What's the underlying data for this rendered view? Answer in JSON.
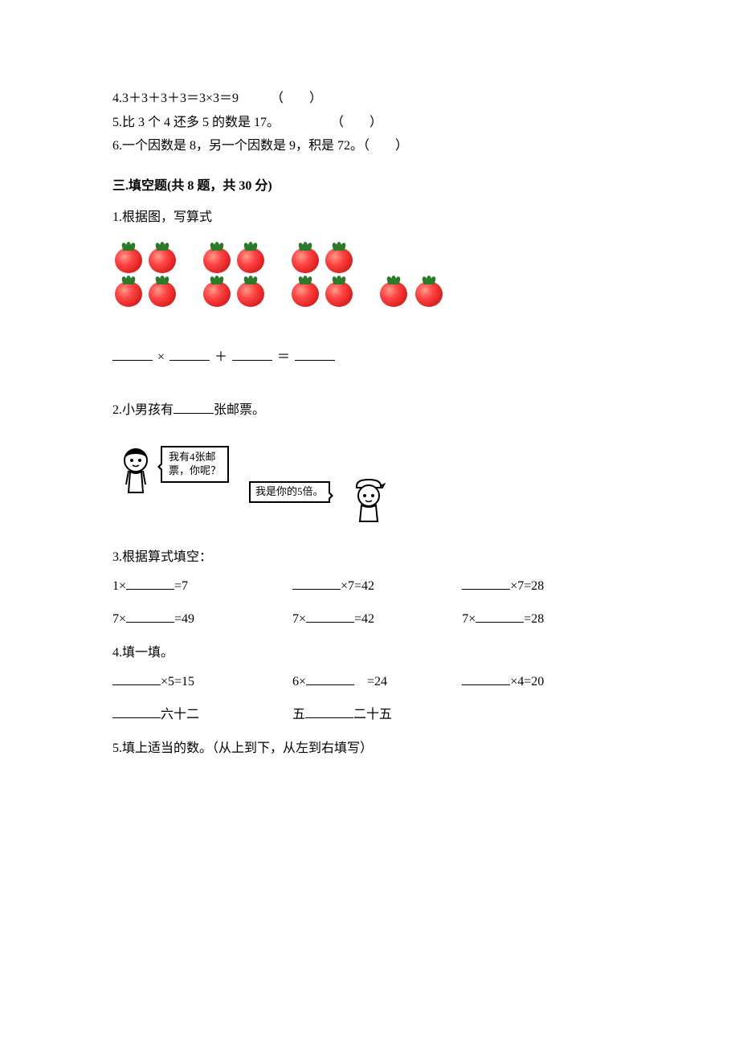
{
  "colors": {
    "text": "#000000",
    "background": "#ffffff",
    "tomato_body_light": "#ff9a8a",
    "tomato_body_mid": "#ff4444",
    "tomato_body_dark": "#aa1111",
    "tomato_leaf": "#2a7a2a"
  },
  "typography": {
    "font_family": "SimSun",
    "body_fontsize": 16,
    "line_height": 1.6
  },
  "top_items": [
    "4.3＋3＋3＋3＝3×3＝9　　　（　　）",
    "5.比 3 个 4 还多 5 的数是 17。　　　　　（　　）",
    "6.一个因数是 8，另一个因数是 9，积是 72。（　　）"
  ],
  "section3_title": "三.填空题(共 8 题，共 30 分)",
  "q1": {
    "prompt": "1.根据图，写算式",
    "groups_of_4": 3,
    "extra_group_count": 2,
    "expr_symbols": {
      "times": "×",
      "plus": "＋",
      "equals": "＝"
    }
  },
  "q2": {
    "prompt_prefix": "2.小男孩有",
    "prompt_suffix": "张邮票。",
    "girl_line1": "我有4张邮",
    "girl_line2": "票，你呢？",
    "boy_text": "我是你的5倍。"
  },
  "q3": {
    "prompt": "3.根据算式填空：",
    "rows": [
      [
        {
          "pre": "1×",
          "blank": true,
          "post": "=7"
        },
        {
          "pre": "",
          "blank": true,
          "post": "×7=42"
        },
        {
          "pre": "",
          "blank": true,
          "post": "×7=28"
        }
      ],
      [
        {
          "pre": "7×",
          "blank": true,
          "post": "=49"
        },
        {
          "pre": "7×",
          "blank": true,
          "post": "=42"
        },
        {
          "pre": "7×",
          "blank": true,
          "post": "=28"
        }
      ]
    ]
  },
  "q4": {
    "prompt": "4.填一填。",
    "rows": [
      [
        {
          "pre": "",
          "blank": true,
          "post": "×5=15"
        },
        {
          "pre": "6×",
          "blank": true,
          "post": "　=24"
        },
        {
          "pre": "",
          "blank": true,
          "post": "×4=20"
        }
      ],
      [
        {
          "pre": "",
          "blank": true,
          "post": "六十二"
        },
        {
          "pre": "五",
          "blank": true,
          "post": "二十五"
        },
        {
          "pre": "",
          "blank": false,
          "post": ""
        }
      ]
    ]
  },
  "q5": {
    "prompt": "5.填上适当的数。（从上到下，从左到右填写）"
  }
}
